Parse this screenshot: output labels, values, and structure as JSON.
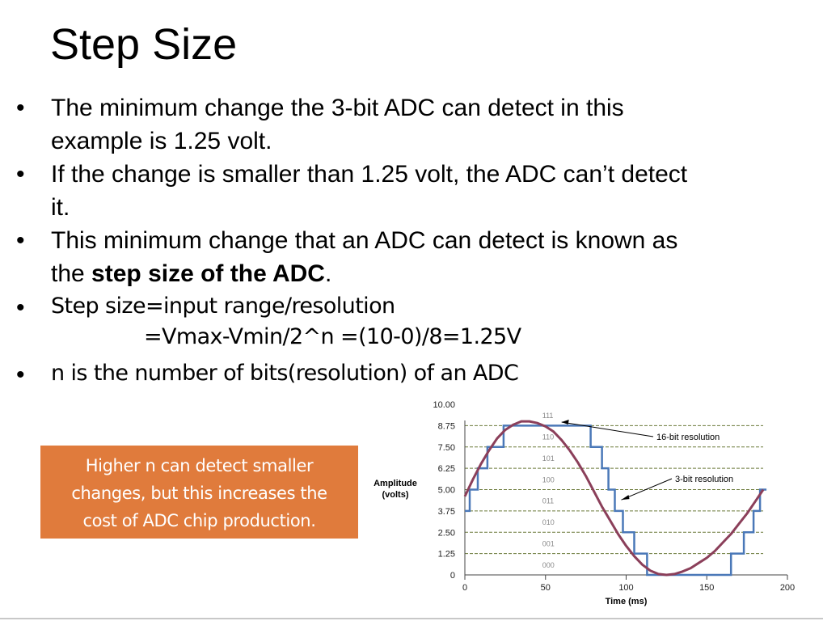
{
  "slide": {
    "title": "Step Size",
    "bullets": [
      {
        "lines": [
          "The minimum change the 3-bit ADC can detect in this",
          "example is 1.25 volt."
        ]
      },
      {
        "lines": [
          "If the change is smaller than 1.25 volt, the ADC can’t detect",
          "it."
        ]
      },
      {
        "line1": "This minimum change that an ADC can detect is known as",
        "pre": "the ",
        "bold": "step size of the ADC",
        "post": "."
      },
      {
        "line1": "Step size=input range/resolution",
        "line2": "=Vmax-Vmin/2^n =(10-0)/8=1.25V"
      },
      {
        "line1": "n is the number of bits(resolution) of an ADC"
      }
    ],
    "bullet_symbol": "•",
    "callout": {
      "lines": [
        "Higher n can detect smaller",
        "changes, but this increases the",
        "cost of ADC  chip production."
      ],
      "color": "#e07b3c"
    }
  },
  "chart_data": {
    "type": "line",
    "ylabel": "Amplitude\n(volts)",
    "ylabel_lines": [
      "Amplitude",
      "(volts)"
    ],
    "xlabel": "Time (ms)",
    "xlim": [
      0,
      200
    ],
    "ylim": [
      0,
      10
    ],
    "x_ticks": [
      0,
      50,
      100,
      150,
      200
    ],
    "y_ticks": [
      "0",
      "1.25",
      "2.50",
      "3.75",
      "5.00",
      "6.25",
      "7.50",
      "8.75",
      "10.00"
    ],
    "y_tick_values": [
      0,
      1.25,
      2.5,
      3.75,
      5,
      6.25,
      7.5,
      8.75,
      10
    ],
    "level_codes": [
      "000",
      "001",
      "010",
      "011",
      "100",
      "101",
      "110",
      "111"
    ],
    "grid": true,
    "annotations": [
      "16-bit resolution",
      "3-bit resolution"
    ],
    "series": [
      {
        "name": "16-bit resolution",
        "color": "#8b3f5a",
        "x": [
          0,
          5,
          10,
          15,
          20,
          25,
          30,
          35,
          40,
          45,
          50,
          55,
          60,
          65,
          70,
          75,
          80,
          85,
          90,
          95,
          100,
          105,
          110,
          115,
          120,
          125,
          130,
          135,
          140,
          145,
          150,
          155,
          160,
          165,
          170,
          175,
          180,
          185
        ],
        "y": [
          4.6,
          5.6,
          6.5,
          7.3,
          8.0,
          8.5,
          8.8,
          9.0,
          9.0,
          8.9,
          8.7,
          8.4,
          7.9,
          7.3,
          6.6,
          5.8,
          4.9,
          4.0,
          3.2,
          2.4,
          1.7,
          1.1,
          0.6,
          0.25,
          0.05,
          0.0,
          0.05,
          0.2,
          0.4,
          0.7,
          1.0,
          1.4,
          1.9,
          2.4,
          3.0,
          3.6,
          4.3,
          5.0
        ]
      },
      {
        "name": "3-bit resolution",
        "color": "#4a78b8",
        "x": [
          0,
          3,
          3,
          8,
          8,
          14,
          14,
          24,
          24,
          78,
          78,
          85,
          85,
          89,
          89,
          93,
          93,
          98,
          98,
          105,
          105,
          113,
          113,
          138,
          138,
          165,
          165,
          173,
          173,
          179,
          179,
          183,
          183,
          187
        ],
        "y": [
          3.75,
          3.75,
          5.0,
          5.0,
          6.25,
          6.25,
          7.5,
          7.5,
          8.75,
          8.75,
          7.5,
          7.5,
          6.25,
          6.25,
          5.0,
          5.0,
          3.75,
          3.75,
          2.5,
          2.5,
          1.25,
          1.25,
          0,
          0,
          0,
          0,
          1.25,
          1.25,
          2.5,
          2.5,
          3.75,
          3.75,
          5.0,
          5.0
        ]
      }
    ]
  }
}
